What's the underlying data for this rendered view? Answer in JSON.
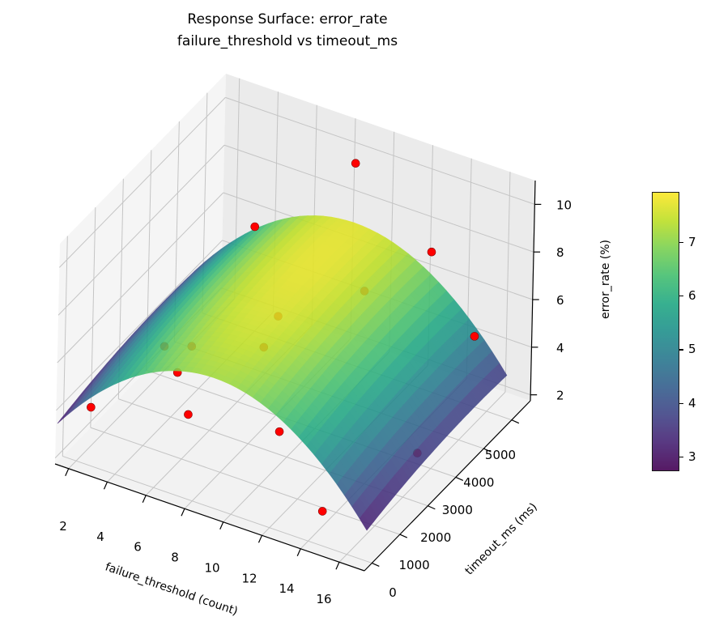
{
  "chart_data": {
    "type": "surface3d",
    "title": "Response Surface: error_rate\nfailure_threshold vs timeout_ms",
    "title_lines": [
      "Response Surface: error_rate",
      "failure_threshold vs timeout_ms"
    ],
    "xlabel": "failure_threshold (count)",
    "ylabel": "timeout_ms (ms)",
    "zlabel": "error_rate (%)",
    "xlim": [
      1.3,
      17.3
    ],
    "ylim": [
      -270,
      5670
    ],
    "zlim": [
      1.75,
      11.0
    ],
    "xticks": [
      2,
      4,
      6,
      8,
      10,
      12,
      14,
      16
    ],
    "yticks": [
      0,
      1000,
      2000,
      3000,
      4000,
      5000
    ],
    "zticks": [
      2,
      4,
      6,
      8,
      10
    ],
    "colormap": "viridis",
    "colorbar": {
      "range": [
        2.74,
        7.95
      ],
      "ticks": [
        3,
        4,
        5,
        6,
        7
      ]
    },
    "surface_x_range": [
      1,
      17
    ],
    "surface_y_range": [
      0,
      5000
    ],
    "surface_model": "z = 7.2 - 0.065*(x-9)^2 + 0.0003*y - 0.00000004*y^2",
    "scatter_color": "#ff0000",
    "scatter": [
      {
        "x": 9,
        "y": 5000,
        "z": 10.2
      },
      {
        "x": 6,
        "y": 3500,
        "z": 8.5
      },
      {
        "x": 13,
        "y": 5000,
        "z": 7.6
      },
      {
        "x": 11,
        "y": 4000,
        "z": 6.6
      },
      {
        "x": 8,
        "y": 3000,
        "z": 5.9
      },
      {
        "x": 8,
        "y": 2500,
        "z": 5.2
      },
      {
        "x": 5,
        "y": 2000,
        "z": 5.0
      },
      {
        "x": 5,
        "y": 1500,
        "z": 4.5
      },
      {
        "x": 5,
        "y": 1000,
        "z": 6.2
      },
      {
        "x": 16,
        "y": 4500,
        "z": 5.5
      },
      {
        "x": 2,
        "y": 500,
        "z": 3.4
      },
      {
        "x": 7,
        "y": 500,
        "z": 4.5
      },
      {
        "x": 11,
        "y": 1000,
        "z": 4.3
      },
      {
        "x": 16,
        "y": 2500,
        "z": 3.0
      },
      {
        "x": 14,
        "y": 500,
        "z": 2.4
      }
    ]
  }
}
